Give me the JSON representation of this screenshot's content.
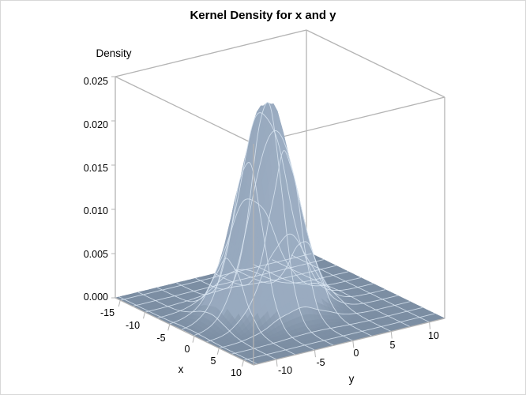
{
  "chart_data": {
    "type": "surface",
    "title": "Kernel Density for x and y",
    "xlabel": "x",
    "ylabel": "y",
    "zlabel": "Density",
    "x_ticks": [
      -15,
      -10,
      -5,
      0,
      5,
      10
    ],
    "y_ticks": [
      -10,
      -5,
      0,
      5,
      10
    ],
    "z_ticks": [
      "0.000",
      "0.005",
      "0.010",
      "0.015",
      "0.020",
      "0.025"
    ],
    "xlim": [
      -16,
      12
    ],
    "ylim": [
      -13,
      12
    ],
    "zlim": [
      0,
      0.025
    ],
    "peak": {
      "x": -1.5,
      "y": -2.5,
      "density": 0.0238
    },
    "spread": {
      "sx": 3.0,
      "sy": 3.2
    },
    "surface_color": "#a7b8cc",
    "floor_color": "#7c8ea3",
    "grid_line_color": "#dbe6f2",
    "box_color": "#b4b4b4",
    "grid": true
  },
  "labels": {
    "title": "Kernel Density for x and y",
    "xlabel": "x",
    "ylabel": "y",
    "zlabel": "Density",
    "z_ticks": [
      "0.000",
      "0.005",
      "0.010",
      "0.015",
      "0.020",
      "0.025"
    ],
    "x_ticks": [
      "-15",
      "-10",
      "-5",
      "0",
      "5",
      "10"
    ],
    "y_ticks": [
      "-10",
      "-5",
      "0",
      "5",
      "10"
    ]
  }
}
